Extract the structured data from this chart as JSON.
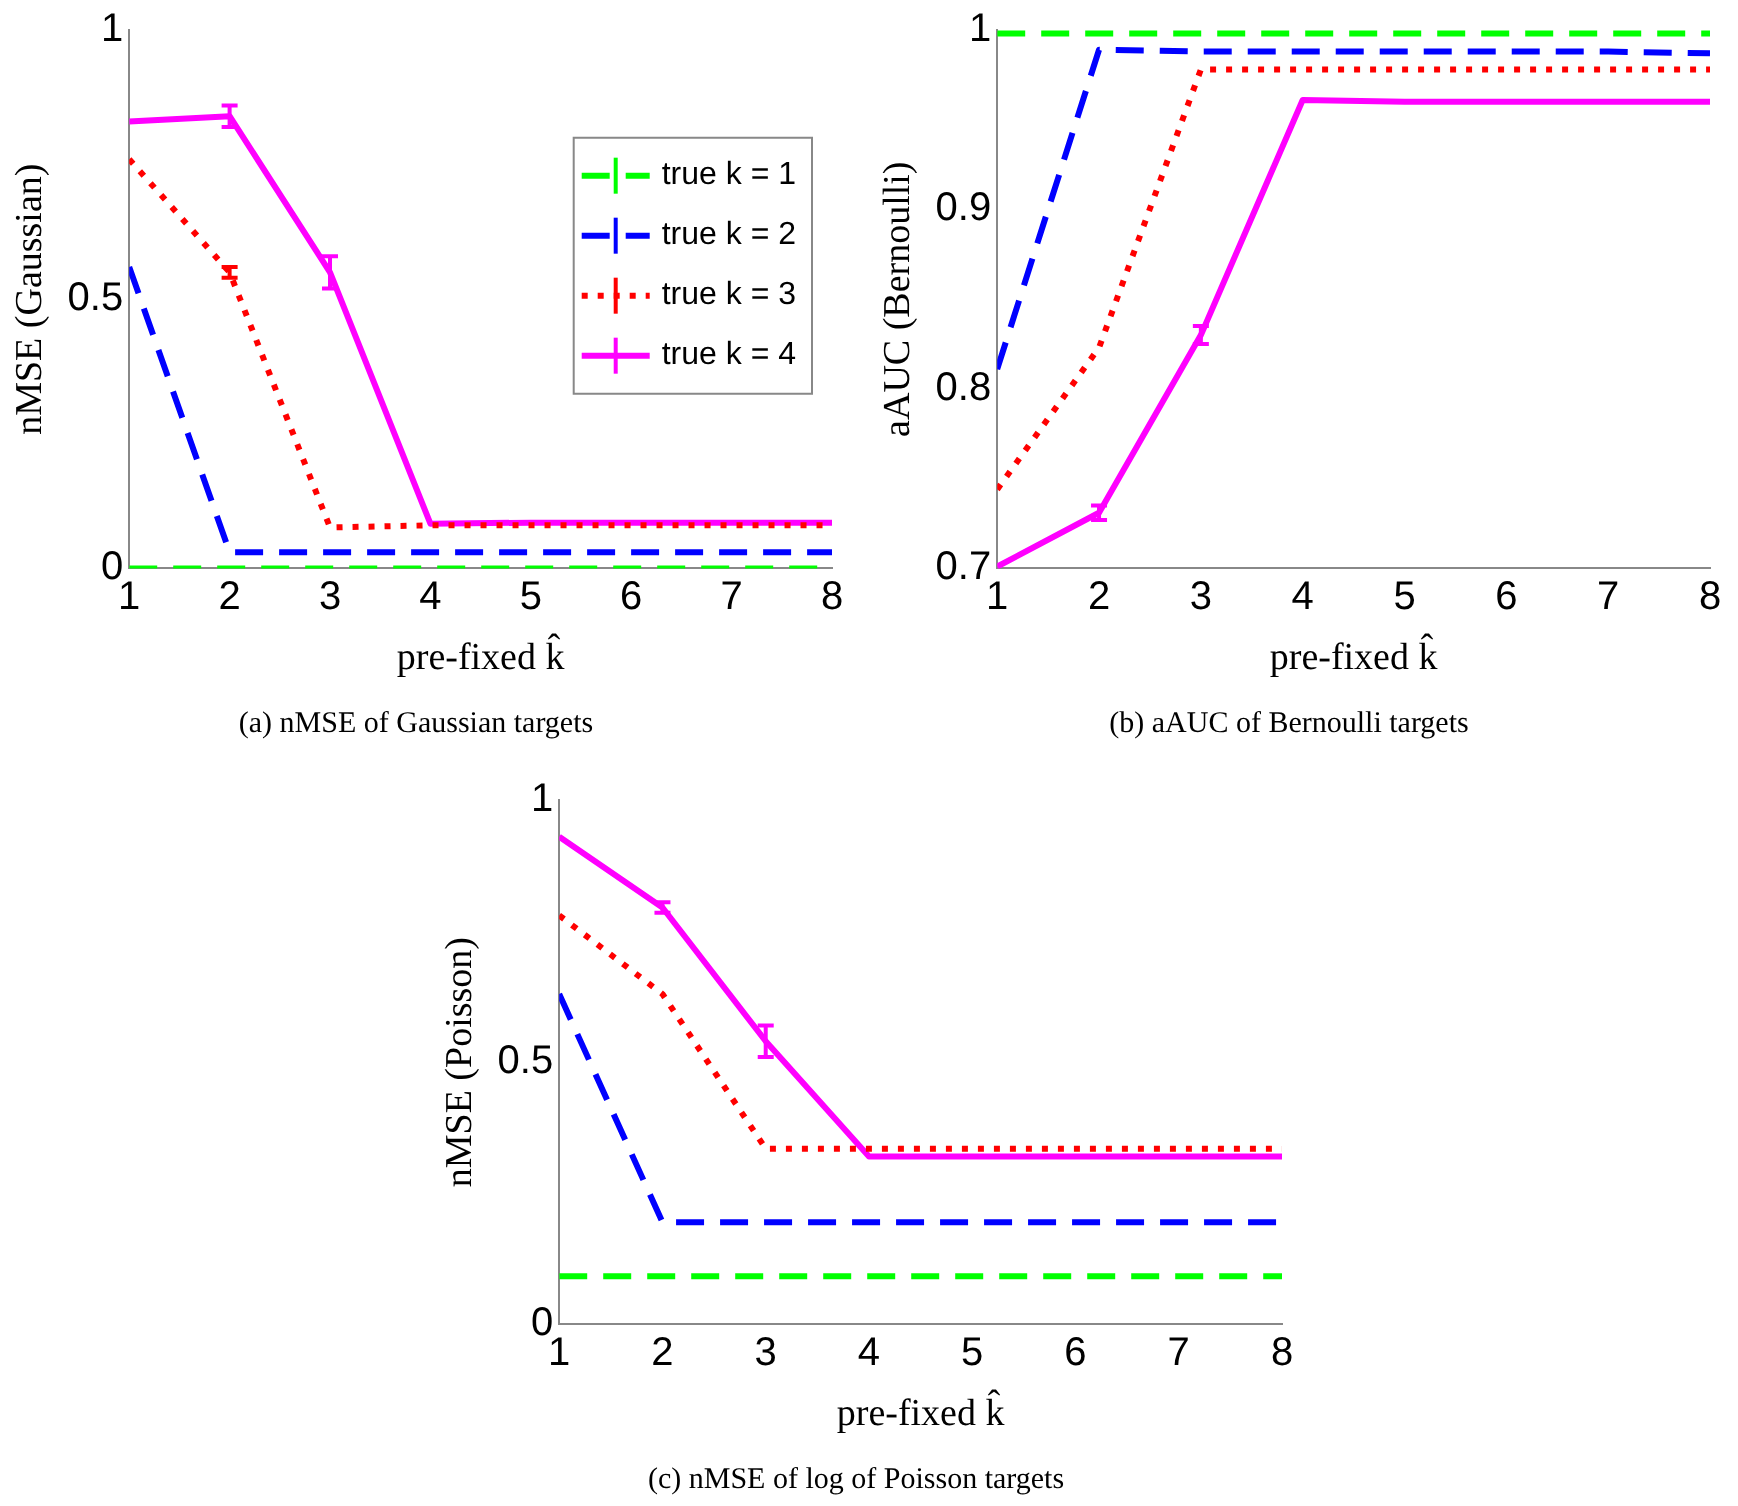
{
  "chart_data": [
    {
      "type": "line",
      "title": "(a) nMSE of Gaussian targets",
      "xlabel": "pre-fixed k̂",
      "ylabel": "nMSE (Gaussian)",
      "x": [
        1,
        2,
        3,
        4,
        5,
        6,
        7,
        8
      ],
      "xlim": [
        1,
        8
      ],
      "xticks": [
        1,
        2,
        3,
        4,
        5,
        6,
        7,
        8
      ],
      "ylim": [
        0,
        1
      ],
      "yticks": [
        0,
        0.5,
        1
      ],
      "legend": "top right",
      "marker": "none",
      "series": [
        {
          "name": "true k = 1",
          "color": "#00ff00",
          "line_style": "dashed",
          "values": [
            0,
            0,
            0,
            0,
            0,
            0,
            0,
            0
          ]
        },
        {
          "name": "true k = 2",
          "color": "#0000ff",
          "line_style": "dashed",
          "values": [
            0.56,
            0.03,
            0.03,
            0.03,
            0.03,
            0.03,
            0.03,
            0.03
          ]
        },
        {
          "name": "true k = 3",
          "color": "#ff0000",
          "line_style": "dotted",
          "values": [
            0.76,
            0.55,
            0.076,
            0.08,
            0.08,
            0.08,
            0.08,
            0.08
          ],
          "errors": [
            null,
            0.01,
            null,
            null,
            null,
            null,
            null,
            null
          ]
        },
        {
          "name": "true k = 4",
          "color": "#ff00ff",
          "line_style": "solid",
          "values": [
            0.83,
            0.84,
            0.55,
            0.083,
            0.085,
            0.085,
            0.085,
            0.085
          ],
          "errors": [
            null,
            0.02,
            0.03,
            null,
            null,
            null,
            null,
            null
          ]
        }
      ]
    },
    {
      "type": "line",
      "title": "(b) aAUC of Bernoulli targets",
      "xlabel": "pre-fixed k̂",
      "ylabel": "aAUC (Bernoulli)",
      "x": [
        1,
        2,
        3,
        4,
        5,
        6,
        7,
        8
      ],
      "xlim": [
        1,
        8
      ],
      "xticks": [
        1,
        2,
        3,
        4,
        5,
        6,
        7,
        8
      ],
      "ylim": [
        0.7,
        1
      ],
      "yticks": [
        0.7,
        0.8,
        0.9,
        1
      ],
      "marker": "none",
      "series": [
        {
          "color": "#00ff00",
          "line_style": "dashed",
          "values": [
            0.998,
            0.998,
            0.998,
            0.998,
            0.998,
            0.998,
            0.998,
            0.998
          ]
        },
        {
          "color": "#0000ff",
          "line_style": "dashed",
          "values": [
            0.811,
            0.989,
            0.988,
            0.988,
            0.988,
            0.988,
            0.988,
            0.987
          ]
        },
        {
          "color": "#ff0000",
          "line_style": "dotted",
          "values": [
            0.744,
            0.823,
            0.978,
            0.978,
            0.978,
            0.978,
            0.978,
            0.978
          ]
        },
        {
          "color": "#ff00ff",
          "line_style": "solid",
          "values": [
            0.701,
            0.731,
            0.83,
            0.961,
            0.96,
            0.96,
            0.96,
            0.96
          ],
          "errors": [
            null,
            0.004,
            0.005,
            null,
            null,
            null,
            null,
            null
          ]
        }
      ]
    },
    {
      "type": "line",
      "title": "(c) nMSE of log of Poisson targets",
      "xlabel": "pre-fixed k̂",
      "ylabel": "nMSE (Poisson)",
      "x": [
        1,
        2,
        3,
        4,
        5,
        6,
        7,
        8
      ],
      "xlim": [
        1,
        8
      ],
      "xticks": [
        1,
        2,
        3,
        4,
        5,
        6,
        7,
        8
      ],
      "ylim": [
        0,
        1
      ],
      "yticks": [
        0,
        0.5,
        1
      ],
      "marker": "none",
      "series": [
        {
          "color": "#00ff00",
          "line_style": "dashed",
          "values": [
            0.092,
            0.092,
            0.092,
            0.092,
            0.092,
            0.092,
            0.092,
            0.092
          ]
        },
        {
          "color": "#0000ff",
          "line_style": "dashed",
          "values": [
            0.63,
            0.195,
            0.195,
            0.195,
            0.195,
            0.195,
            0.195,
            0.195
          ]
        },
        {
          "color": "#ff0000",
          "line_style": "dotted",
          "values": [
            0.78,
            0.63,
            0.335,
            0.335,
            0.335,
            0.335,
            0.335,
            0.335
          ]
        },
        {
          "color": "#ff00ff",
          "line_style": "solid",
          "values": [
            0.93,
            0.795,
            0.54,
            0.32,
            0.32,
            0.32,
            0.32,
            0.32
          ],
          "errors": [
            null,
            0.01,
            0.03,
            null,
            null,
            null,
            null,
            null
          ]
        }
      ]
    }
  ]
}
